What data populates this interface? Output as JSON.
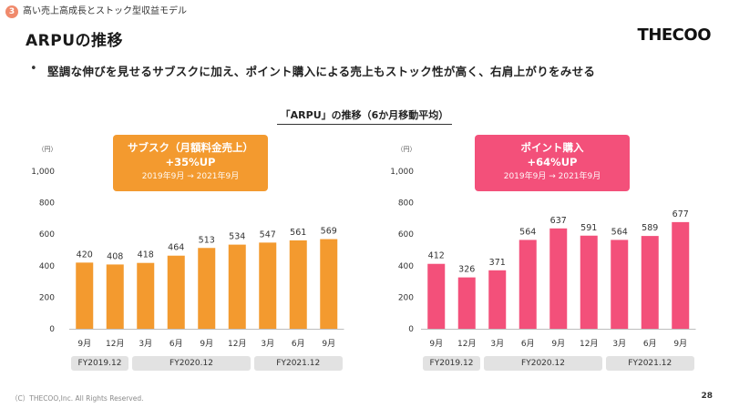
{
  "header": {
    "section_number": "3",
    "section_label": "高い売上高成長とストック型収益モデル",
    "page_title": "ARPUの推移",
    "logo": "THECOO"
  },
  "bullet": {
    "marker": "•",
    "text": "堅調な伸びを見せるサブスクに加え、ポイント購入による売上もストック性が高く、右肩上がりをみせる"
  },
  "chart_caption": "「ARPU」の推移（6か月移動平均）",
  "left_callout": {
    "title": "サブスク（月額料金売上）",
    "growth": "+35%UP",
    "period": "2019年9月 → 2021年9月"
  },
  "right_callout": {
    "title": "ポイント購入",
    "growth": "+64%UP",
    "period": "2019年9月 → 2021年9月"
  },
  "colors": {
    "subscription": "#f39a2f",
    "points": "#f3507a",
    "badge": "#f08a6c"
  },
  "chart_data": [
    {
      "type": "bar",
      "name": "subscription",
      "title": "サブスク（月額料金売上）",
      "unit_label": "（円）",
      "categories": [
        "9月",
        "12月",
        "3月",
        "6月",
        "9月",
        "12月",
        "3月",
        "6月",
        "9月"
      ],
      "values": [
        420,
        408,
        418,
        464,
        513,
        534,
        547,
        561,
        569
      ],
      "ylim": [
        0,
        1000
      ],
      "yticks": [
        0,
        200,
        400,
        600,
        800,
        1000
      ],
      "ytick_labels": [
        "0",
        "200",
        "400",
        "600",
        "800",
        "1,000"
      ],
      "fiscal_years": [
        {
          "label": "FY2019.12",
          "span": 2
        },
        {
          "label": "FY2020.12",
          "span": 4
        },
        {
          "label": "FY2021.12",
          "span": 3
        }
      ]
    },
    {
      "type": "bar",
      "name": "points",
      "title": "ポイント購入",
      "unit_label": "（円）",
      "categories": [
        "9月",
        "12月",
        "3月",
        "6月",
        "9月",
        "12月",
        "3月",
        "6月",
        "9月"
      ],
      "values": [
        412,
        326,
        371,
        564,
        637,
        591,
        564,
        589,
        677
      ],
      "ylim": [
        0,
        1000
      ],
      "yticks": [
        0,
        200,
        400,
        600,
        800,
        1000
      ],
      "ytick_labels": [
        "0",
        "200",
        "400",
        "600",
        "800",
        "1,000"
      ],
      "fiscal_years": [
        {
          "label": "FY2019.12",
          "span": 2
        },
        {
          "label": "FY2020.12",
          "span": 4
        },
        {
          "label": "FY2021.12",
          "span": 3
        }
      ]
    }
  ],
  "footer": {
    "copyright": "（C）THECOO,Inc. All Rights Reserved.",
    "page_number": "28"
  }
}
